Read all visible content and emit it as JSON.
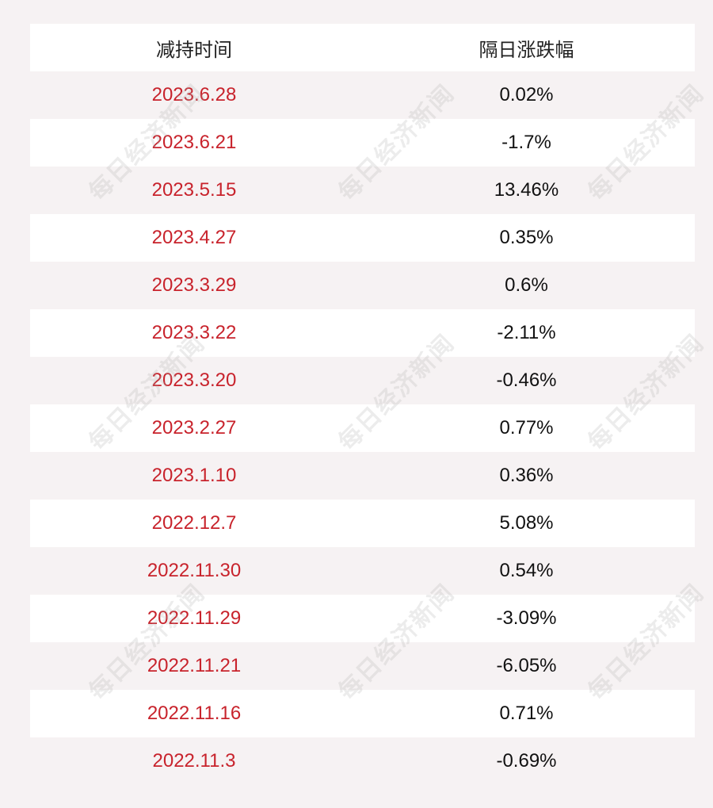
{
  "table": {
    "headers": [
      "减持时间",
      "隔日涨跌幅"
    ],
    "rows": [
      {
        "date": "2023.6.28",
        "change": "0.02%"
      },
      {
        "date": "2023.6.21",
        "change": "-1.7%"
      },
      {
        "date": "2023.5.15",
        "change": "13.46%"
      },
      {
        "date": "2023.4.27",
        "change": "0.35%"
      },
      {
        "date": "2023.3.29",
        "change": "0.6%"
      },
      {
        "date": "2023.3.22",
        "change": "-2.11%"
      },
      {
        "date": "2023.3.20",
        "change": "-0.46%"
      },
      {
        "date": "2023.2.27",
        "change": "0.77%"
      },
      {
        "date": "2023.1.10",
        "change": "0.36%"
      },
      {
        "date": "2022.12.7",
        "change": "5.08%"
      },
      {
        "date": "2022.11.30",
        "change": "0.54%"
      },
      {
        "date": "2022.11.29",
        "change": "-3.09%"
      },
      {
        "date": "2022.11.21",
        "change": "-6.05%"
      },
      {
        "date": "2022.11.16",
        "change": "0.71%"
      },
      {
        "date": "2022.11.3",
        "change": "-0.69%"
      }
    ]
  },
  "watermark": "每日经济新闻",
  "colors": {
    "date_text": "#c8232c",
    "value_text": "#111111",
    "row_white": "#ffffff",
    "row_tint": "#f6f2f3"
  }
}
